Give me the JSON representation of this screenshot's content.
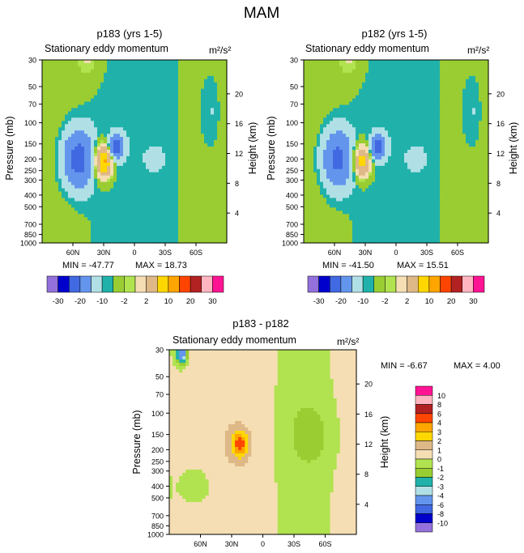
{
  "figure": {
    "title": "MAM"
  },
  "palette": {
    "top": [
      "#9370db",
      "#0000cd",
      "#4169e1",
      "#6495ed",
      "#b0e0e6",
      "#20b2aa",
      "#9acd32",
      "#b0e34f",
      "#f5deb3",
      "#deb887",
      "#ffd700",
      "#ffa500",
      "#ff4500",
      "#b22222",
      "#ffb6c1",
      "#ff1493"
    ],
    "diff": [
      "#9370db",
      "#0000cd",
      "#4169e1",
      "#6495ed",
      "#b0e0e6",
      "#20b2aa",
      "#9acd32",
      "#b0e34f",
      "#f5deb3",
      "#deb887",
      "#ffd700",
      "#ffa500",
      "#ff4500",
      "#b22222",
      "#ffb6c1",
      "#ff1493"
    ]
  },
  "chart_data": [
    {
      "type": "heatmap",
      "title": "p183 (yrs 1-5)",
      "subtitle_left": "Stationary eddy momentum",
      "units": "m²/s²",
      "ylabel": "Pressure (mb)",
      "ylabel_right": "Height (km)",
      "xticks": [
        "60N",
        "30N",
        "0",
        "30S",
        "60S"
      ],
      "xtick_lat": [
        60,
        30,
        0,
        -30,
        -60
      ],
      "xlim": [
        90,
        -90
      ],
      "ylim": [
        1000,
        30
      ],
      "yticks": [
        "30",
        "50",
        "70",
        "100",
        "150",
        "200",
        "250",
        "300",
        "400",
        "500",
        "700",
        "850",
        "1000"
      ],
      "ytick_values": [
        30,
        50,
        70,
        100,
        150,
        200,
        250,
        300,
        400,
        500,
        700,
        850,
        1000
      ],
      "height_ticks": [
        "20",
        "16",
        "12",
        "8",
        "4"
      ],
      "height_values": [
        20,
        16,
        12,
        8,
        4
      ],
      "min_label": "MIN = -47.77",
      "max_label": "MAX =  18.73",
      "colorbar_labels": [
        "-30",
        "-20",
        "-10",
        "-2",
        "2",
        "10",
        "20",
        "30"
      ],
      "features": [
        {
          "lat": 55,
          "p": 200,
          "w": 15,
          "h": 0.55,
          "v": -12
        },
        {
          "lat": 18,
          "p": 160,
          "w": 7,
          "h": 0.22,
          "v": -14
        },
        {
          "lat": 30,
          "p": 210,
          "w": 8,
          "h": 0.3,
          "v": 18
        },
        {
          "lat": -20,
          "p": 200,
          "w": 8,
          "h": 0.2,
          "v": -3
        },
        {
          "lat": 45,
          "p": 30,
          "w": 12,
          "h": 0.4,
          "v": 3
        },
        {
          "lat": -75,
          "p": 80,
          "w": 10,
          "h": 0.8,
          "v": -2
        }
      ]
    },
    {
      "type": "heatmap",
      "title": "p182 (yrs 1-5)",
      "subtitle_left": "Stationary eddy momentum",
      "units": "m²/s²",
      "ylabel": "Pressure (mb)",
      "ylabel_right": "Height (km)",
      "xticks": [
        "60N",
        "30N",
        "0",
        "30S",
        "60S"
      ],
      "xtick_lat": [
        60,
        30,
        0,
        -30,
        -60
      ],
      "xlim": [
        90,
        -90
      ],
      "ylim": [
        1000,
        30
      ],
      "yticks": [
        "30",
        "50",
        "70",
        "100",
        "150",
        "200",
        "250",
        "300",
        "400",
        "500",
        "700",
        "850",
        "1000"
      ],
      "ytick_values": [
        30,
        50,
        70,
        100,
        150,
        200,
        250,
        300,
        400,
        500,
        700,
        850,
        1000
      ],
      "height_ticks": [
        "20",
        "16",
        "12",
        "8",
        "4"
      ],
      "height_values": [
        20,
        16,
        12,
        8,
        4
      ],
      "min_label": "MIN = -41.50",
      "max_label": "MAX =  15.51",
      "colorbar_labels": [
        "-30",
        "-20",
        "-10",
        "-2",
        "2",
        "10",
        "20",
        "30"
      ],
      "features": [
        {
          "lat": 57,
          "p": 200,
          "w": 15,
          "h": 0.55,
          "v": -11
        },
        {
          "lat": 18,
          "p": 160,
          "w": 7,
          "h": 0.22,
          "v": -12
        },
        {
          "lat": 33,
          "p": 210,
          "w": 8,
          "h": 0.3,
          "v": 14
        },
        {
          "lat": -20,
          "p": 200,
          "w": 8,
          "h": 0.2,
          "v": -3
        },
        {
          "lat": 45,
          "p": 30,
          "w": 12,
          "h": 0.4,
          "v": 3
        },
        {
          "lat": -75,
          "p": 80,
          "w": 10,
          "h": 0.8,
          "v": -2
        }
      ]
    },
    {
      "type": "heatmap",
      "title": "p183 - p182",
      "subtitle_left": "Stationary eddy momentum",
      "units": "m²/s²",
      "ylabel": "Pressure (mb)",
      "ylabel_right": "Height (km)",
      "xticks": [
        "60N",
        "30N",
        "0",
        "30S",
        "60S"
      ],
      "xtick_lat": [
        60,
        30,
        0,
        -30,
        -60
      ],
      "xlim": [
        90,
        -90
      ],
      "ylim": [
        1000,
        30
      ],
      "yticks": [
        "30",
        "50",
        "70",
        "100",
        "150",
        "200",
        "250",
        "300",
        "400",
        "500",
        "700",
        "850",
        "1000"
      ],
      "ytick_values": [
        30,
        50,
        70,
        100,
        150,
        200,
        250,
        300,
        400,
        500,
        700,
        850,
        1000
      ],
      "height_ticks": [
        "20",
        "16",
        "12",
        "8",
        "4"
      ],
      "height_values": [
        20,
        16,
        12,
        8,
        4
      ],
      "min_label": "MIN =  -6.67",
      "max_label": "MAX =    4.00",
      "colorbar_labels": [
        "10",
        "8",
        "6",
        "4",
        "3",
        "2",
        "1",
        "0",
        "-1",
        "-2",
        "-3",
        "-4",
        "-6",
        "-8",
        "-10"
      ],
      "features": [
        {
          "lat": 22,
          "p": 180,
          "w": 8,
          "h": 0.25,
          "v": 4
        },
        {
          "lat": 78,
          "p": 32,
          "w": 5,
          "h": 0.2,
          "v": -6
        },
        {
          "lat": -45,
          "p": 150,
          "w": 20,
          "h": 0.6,
          "v": -1.5
        },
        {
          "lat": 60,
          "p": 400,
          "w": 18,
          "h": 0.5,
          "v": -1
        }
      ]
    }
  ]
}
